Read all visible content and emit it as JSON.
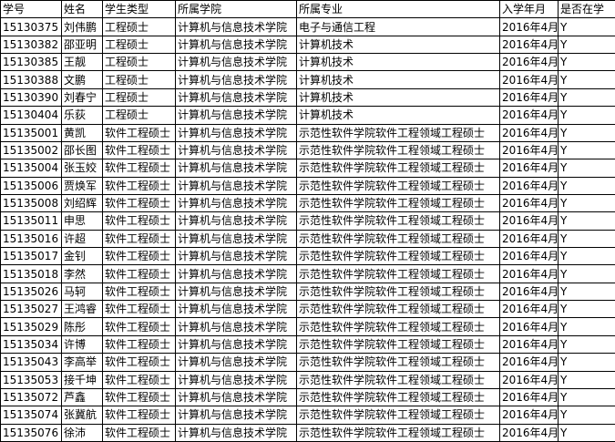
{
  "table": {
    "header": [
      "学号",
      "姓名",
      "学生类型",
      "所属学院",
      "所属专业",
      "入学年月",
      "是否在学"
    ],
    "rows": [
      [
        "15130375",
        "刘伟鹏",
        "工程硕士",
        "计算机与信息技术学院",
        "电子与通信工程",
        "2016年4月",
        "Y"
      ],
      [
        "15130382",
        "邵亚明",
        "工程硕士",
        "计算机与信息技术学院",
        "计算机技术",
        "2016年4月",
        "Y"
      ],
      [
        "15130385",
        "王靓",
        "工程硕士",
        "计算机与信息技术学院",
        "计算机技术",
        "2016年4月",
        "Y"
      ],
      [
        "15130388",
        "文鹏",
        "工程硕士",
        "计算机与信息技术学院",
        "计算机技术",
        "2016年4月",
        "Y"
      ],
      [
        "15130390",
        "刘春宁",
        "工程硕士",
        "计算机与信息技术学院",
        "计算机技术",
        "2016年4月",
        "Y"
      ],
      [
        "15130404",
        "乐荻",
        "工程硕士",
        "计算机与信息技术学院",
        "计算机技术",
        "2016年4月",
        "Y"
      ],
      [
        "15135001",
        "黄凯",
        "软件工程硕士",
        "计算机与信息技术学院",
        "示范性软件学院软件工程领域工程硕士",
        "2016年4月",
        "Y"
      ],
      [
        "15135002",
        "邵长图",
        "软件工程硕士",
        "计算机与信息技术学院",
        "示范性软件学院软件工程领域工程硕士",
        "2016年4月",
        "Y"
      ],
      [
        "15135004",
        "张玉姣",
        "软件工程硕士",
        "计算机与信息技术学院",
        "示范性软件学院软件工程领域工程硕士",
        "2016年4月",
        "Y"
      ],
      [
        "15135006",
        "贾焕军",
        "软件工程硕士",
        "计算机与信息技术学院",
        "示范性软件学院软件工程领域工程硕士",
        "2016年4月",
        "Y"
      ],
      [
        "15135008",
        "刘绍辉",
        "软件工程硕士",
        "计算机与信息技术学院",
        "示范性软件学院软件工程领域工程硕士",
        "2016年4月",
        "Y"
      ],
      [
        "15135011",
        "申思",
        "软件工程硕士",
        "计算机与信息技术学院",
        "示范性软件学院软件工程领域工程硕士",
        "2016年4月",
        "Y"
      ],
      [
        "15135016",
        "许超",
        "软件工程硕士",
        "计算机与信息技术学院",
        "示范性软件学院软件工程领域工程硕士",
        "2016年4月",
        "Y"
      ],
      [
        "15135017",
        "金钊",
        "软件工程硕士",
        "计算机与信息技术学院",
        "示范性软件学院软件工程领域工程硕士",
        "2016年4月",
        "Y"
      ],
      [
        "15135018",
        "李然",
        "软件工程硕士",
        "计算机与信息技术学院",
        "示范性软件学院软件工程领域工程硕士",
        "2016年4月",
        "Y"
      ],
      [
        "15135026",
        "马轲",
        "软件工程硕士",
        "计算机与信息技术学院",
        "示范性软件学院软件工程领域工程硕士",
        "2016年4月",
        "Y"
      ],
      [
        "15135027",
        "王鸿睿",
        "软件工程硕士",
        "计算机与信息技术学院",
        "示范性软件学院软件工程领域工程硕士",
        "2016年4月",
        "Y"
      ],
      [
        "15135029",
        "陈彤",
        "软件工程硕士",
        "计算机与信息技术学院",
        "示范性软件学院软件工程领域工程硕士",
        "2016年4月",
        "Y"
      ],
      [
        "15135034",
        "许博",
        "软件工程硕士",
        "计算机与信息技术学院",
        "示范性软件学院软件工程领域工程硕士",
        "2016年4月",
        "Y"
      ],
      [
        "15135043",
        "李高举",
        "软件工程硕士",
        "计算机与信息技术学院",
        "示范性软件学院软件工程领域工程硕士",
        "2016年4月",
        "Y"
      ],
      [
        "15135053",
        "接千坤",
        "软件工程硕士",
        "计算机与信息技术学院",
        "示范性软件学院软件工程领域工程硕士",
        "2016年4月",
        "Y"
      ],
      [
        "15135072",
        "芦鑫",
        "软件工程硕士",
        "计算机与信息技术学院",
        "示范性软件学院软件工程领域工程硕士",
        "2016年4月",
        "Y"
      ],
      [
        "15135074",
        "张冀航",
        "软件工程硕士",
        "计算机与信息技术学院",
        "示范性软件学院软件工程领域工程硕士",
        "2016年4月",
        "Y"
      ],
      [
        "15135076",
        "徐沛",
        "软件工程硕士",
        "计算机与信息技术学院",
        "示范性软件学院软件工程领域工程硕士",
        "2016年4月",
        "Y"
      ]
    ]
  }
}
